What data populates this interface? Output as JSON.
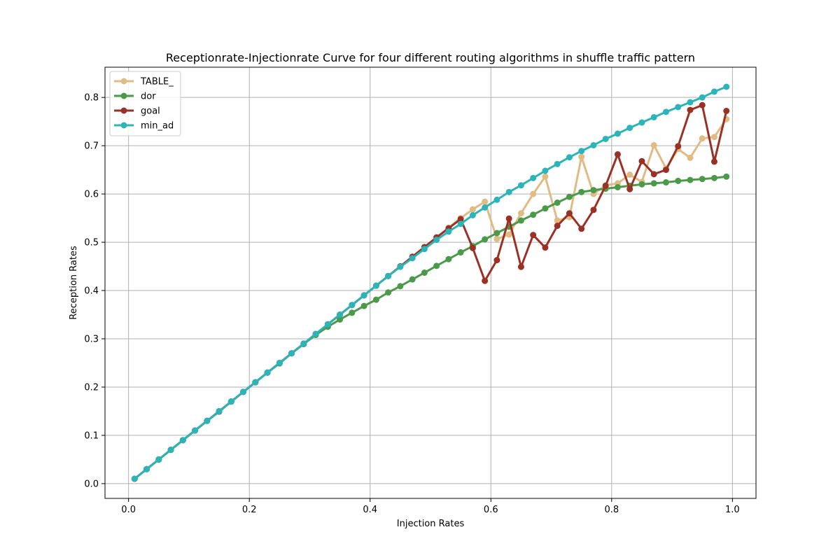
{
  "chart_data": {
    "type": "line",
    "title": "Receptionrate-Injectionrate Curve for four different routing algorithms in shuffle traffic pattern",
    "xlabel": "Injection Rates",
    "ylabel": "Reception Rates",
    "xlim": [
      -0.039,
      1.039
    ],
    "ylim": [
      -0.0306,
      0.8626
    ],
    "xticks": [
      0.0,
      0.2,
      0.4,
      0.6,
      0.8,
      1.0
    ],
    "xtick_labels": [
      "0.0",
      "0.2",
      "0.4",
      "0.6",
      "0.8",
      "1.0"
    ],
    "yticks": [
      0.0,
      0.1,
      0.2,
      0.3,
      0.4,
      0.5,
      0.6,
      0.7,
      0.8
    ],
    "ytick_labels": [
      "0.0",
      "0.1",
      "0.2",
      "0.3",
      "0.4",
      "0.5",
      "0.6",
      "0.7",
      "0.8"
    ],
    "grid": true,
    "legend_position": "top-left",
    "x": [
      0.01,
      0.03,
      0.05,
      0.07,
      0.09,
      0.11,
      0.13,
      0.15,
      0.17,
      0.19,
      0.21,
      0.23,
      0.25,
      0.27,
      0.29,
      0.31,
      0.33,
      0.35,
      0.37,
      0.39,
      0.41,
      0.43,
      0.45,
      0.47,
      0.49,
      0.51,
      0.53,
      0.55,
      0.57,
      0.59,
      0.61,
      0.63,
      0.65,
      0.67,
      0.69,
      0.71,
      0.73,
      0.75,
      0.77,
      0.79,
      0.81,
      0.83,
      0.85,
      0.87,
      0.89,
      0.91,
      0.93,
      0.95,
      0.97,
      0.99
    ],
    "series": [
      {
        "name": "TABLE_",
        "color": "#e0bb84",
        "values": [
          0.01,
          0.03,
          0.05,
          0.07,
          0.09,
          0.11,
          0.13,
          0.15,
          0.17,
          0.19,
          0.21,
          0.23,
          0.25,
          0.27,
          0.29,
          0.31,
          0.33,
          0.35,
          0.37,
          0.39,
          0.41,
          0.43,
          0.45,
          0.47,
          0.49,
          0.51,
          0.53,
          0.55,
          0.568,
          0.584,
          0.507,
          0.516,
          0.56,
          0.6,
          0.636,
          0.545,
          0.552,
          0.677,
          0.6,
          0.618,
          0.622,
          0.64,
          0.625,
          0.701,
          0.653,
          0.693,
          0.675,
          0.715,
          0.718,
          0.755
        ]
      },
      {
        "name": "dor",
        "color": "#4a9a4a",
        "values": [
          0.01,
          0.03,
          0.05,
          0.07,
          0.09,
          0.11,
          0.13,
          0.149,
          0.17,
          0.19,
          0.21,
          0.23,
          0.249,
          0.27,
          0.289,
          0.308,
          0.325,
          0.34,
          0.354,
          0.368,
          0.381,
          0.396,
          0.409,
          0.423,
          0.437,
          0.451,
          0.465,
          0.479,
          0.492,
          0.506,
          0.519,
          0.532,
          0.545,
          0.557,
          0.57,
          0.582,
          0.594,
          0.604,
          0.608,
          0.611,
          0.614,
          0.617,
          0.62,
          0.622,
          0.624,
          0.627,
          0.629,
          0.631,
          0.633,
          0.636
        ]
      },
      {
        "name": "goal",
        "color": "#9b3124",
        "values": [
          0.01,
          0.03,
          0.05,
          0.07,
          0.09,
          0.11,
          0.13,
          0.15,
          0.17,
          0.19,
          0.21,
          0.23,
          0.25,
          0.27,
          0.29,
          0.31,
          0.33,
          0.35,
          0.37,
          0.39,
          0.41,
          0.43,
          0.45,
          0.47,
          0.49,
          0.51,
          0.529,
          0.548,
          0.488,
          0.42,
          0.463,
          0.549,
          0.449,
          0.515,
          0.489,
          0.534,
          0.56,
          0.528,
          0.567,
          0.617,
          0.682,
          0.61,
          0.668,
          0.641,
          0.65,
          0.699,
          0.774,
          0.784,
          0.667,
          0.772
        ]
      },
      {
        "name": "min_ad",
        "color": "#2bb5b8",
        "values": [
          0.01,
          0.03,
          0.05,
          0.07,
          0.09,
          0.11,
          0.13,
          0.15,
          0.17,
          0.19,
          0.21,
          0.23,
          0.25,
          0.27,
          0.29,
          0.31,
          0.33,
          0.35,
          0.37,
          0.39,
          0.41,
          0.43,
          0.449,
          0.467,
          0.486,
          0.505,
          0.522,
          0.538,
          0.556,
          0.572,
          0.588,
          0.604,
          0.618,
          0.633,
          0.648,
          0.662,
          0.676,
          0.689,
          0.701,
          0.714,
          0.725,
          0.737,
          0.748,
          0.759,
          0.77,
          0.78,
          0.79,
          0.8,
          0.812,
          0.822
        ]
      }
    ]
  }
}
